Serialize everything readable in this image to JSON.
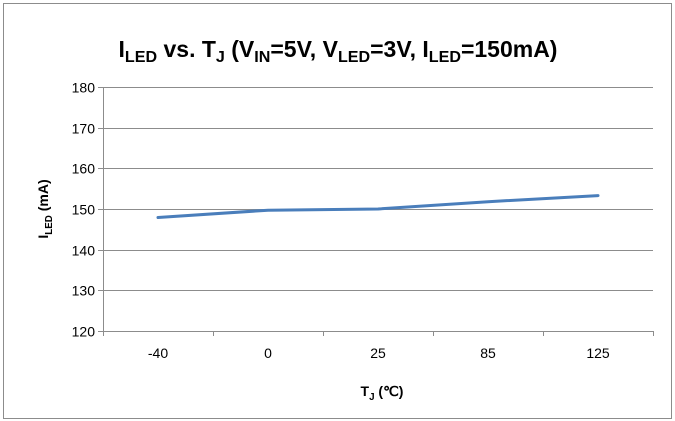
{
  "chart_data": {
    "type": "line",
    "title": {
      "main": "I",
      "main_sub": "LED",
      "rest1": " vs. T",
      "rest1_sub": "J",
      "rest2": " (V",
      "rest2_sub": "IN",
      "rest3": "=5V, V",
      "rest3_sub": "LED",
      "rest4": "=3V, I",
      "rest4_sub": "LED",
      "rest5": "=150mA)"
    },
    "xlabel": {
      "main": "T",
      "sub": "J",
      "rest": " (℃)"
    },
    "ylabel": {
      "main": "I",
      "sub": "LED",
      "rest": " (mA)"
    },
    "categories": [
      "-40",
      "0",
      "25",
      "85",
      "125"
    ],
    "series": [
      {
        "values": [
          147.9,
          149.7,
          150.0,
          151.8,
          153.3
        ],
        "color": "#4a7ebb"
      }
    ],
    "ylim": [
      120,
      180
    ],
    "yticks": [
      120,
      130,
      140,
      150,
      160,
      170,
      180
    ],
    "grid": true,
    "legend": "none"
  }
}
